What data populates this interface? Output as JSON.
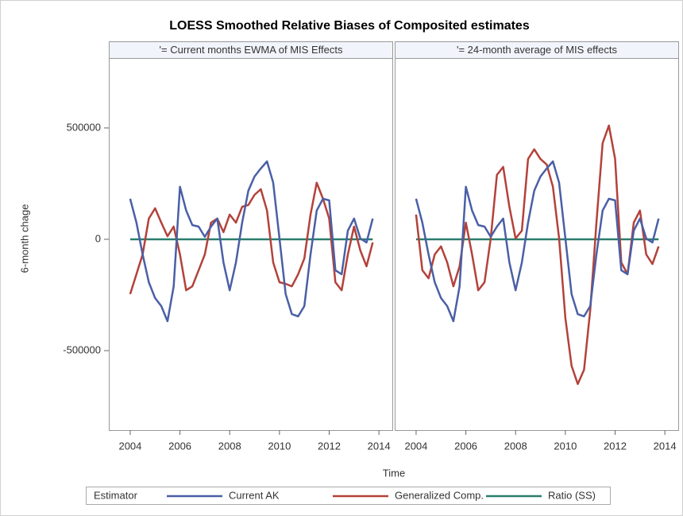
{
  "chart_data": {
    "type": "line",
    "title": "LOESS Smoothed Relative Biases of Composited estimates",
    "xlabel": "Time",
    "ylabel": "6-month chage",
    "legend_title": "Estimator",
    "x": [
      2004,
      2004.25,
      2004.5,
      2004.75,
      2005,
      2005.25,
      2005.5,
      2005.75,
      2006,
      2006.25,
      2006.5,
      2006.75,
      2007,
      2007.25,
      2007.5,
      2007.75,
      2008,
      2008.25,
      2008.5,
      2008.75,
      2009,
      2009.25,
      2009.5,
      2009.75,
      2010,
      2010.25,
      2010.5,
      2010.75,
      2011,
      2011.25,
      2011.5,
      2011.75,
      2012,
      2012.25,
      2012.5,
      2012.75,
      2013,
      2013.25,
      2013.5,
      2013.75
    ],
    "xlim": [
      2003.14,
      2014.57
    ],
    "xticks": [
      2004,
      2006,
      2008,
      2010,
      2012,
      2014
    ],
    "ylim": [
      -857000,
      814000
    ],
    "yticks": [
      -500000,
      0,
      500000
    ],
    "series": [
      {
        "name": "Current AK",
        "color": "#4a5fa6"
      },
      {
        "name": "Generalized Comp.",
        "color": "#b3423a"
      },
      {
        "name": "Ratio (SS)",
        "color": "#2a7d6e"
      }
    ],
    "panels": [
      {
        "title": "'= Current months EWMA of MIS Effects",
        "values": [
          [
            182000,
            75000,
            -68000,
            -193000,
            -264000,
            -300000,
            -368000,
            -211000,
            236000,
            129000,
            64000,
            57000,
            11000,
            57000,
            93000,
            -104000,
            -229000,
            -104000,
            75000,
            218000,
            282000,
            318000,
            350000,
            254000,
            4000,
            -246000,
            -336000,
            -346000,
            -300000,
            -68000,
            129000,
            182000,
            175000,
            -139000,
            -157000,
            39000,
            93000,
            4000,
            -14000,
            93000
          ],
          [
            -246000,
            -157000,
            -68000,
            93000,
            139000,
            75000,
            14000,
            57000,
            -68000,
            -229000,
            -211000,
            -139000,
            -68000,
            75000,
            93000,
            32000,
            111000,
            75000,
            146000,
            154000,
            200000,
            225000,
            129000,
            -104000,
            -193000,
            -200000,
            -211000,
            -157000,
            -86000,
            111000,
            254000,
            182000,
            93000,
            -193000,
            -229000,
            -68000,
            57000,
            -50000,
            -121000,
            -14000
          ],
          [
            0,
            0,
            0,
            0,
            0,
            0,
            0,
            0,
            0,
            0,
            0,
            0,
            0,
            0,
            0,
            0,
            0,
            0,
            0,
            0,
            0,
            0,
            0,
            0,
            0,
            0,
            0,
            0,
            0,
            0,
            0,
            0,
            0,
            0,
            0,
            0,
            0,
            0,
            0,
            0
          ]
        ]
      },
      {
        "title": "'= 24-month average of MIS effects",
        "values": [
          [
            182000,
            75000,
            -68000,
            -193000,
            -264000,
            -300000,
            -368000,
            -211000,
            236000,
            129000,
            64000,
            57000,
            11000,
            57000,
            93000,
            -104000,
            -229000,
            -104000,
            75000,
            218000,
            282000,
            318000,
            350000,
            254000,
            4000,
            -246000,
            -336000,
            -346000,
            -300000,
            -68000,
            129000,
            182000,
            175000,
            -139000,
            -157000,
            39000,
            93000,
            4000,
            -14000,
            93000
          ],
          [
            111000,
            -139000,
            -175000,
            -68000,
            -32000,
            -104000,
            -211000,
            -121000,
            75000,
            -68000,
            -229000,
            -193000,
            4000,
            289000,
            325000,
            146000,
            4000,
            39000,
            361000,
            404000,
            361000,
            336000,
            236000,
            4000,
            -354000,
            -568000,
            -650000,
            -586000,
            -318000,
            75000,
            432000,
            511000,
            361000,
            -104000,
            -157000,
            75000,
            129000,
            -68000,
            -111000,
            -32000
          ],
          [
            0,
            0,
            0,
            0,
            0,
            0,
            0,
            0,
            0,
            0,
            0,
            0,
            0,
            0,
            0,
            0,
            0,
            0,
            0,
            0,
            0,
            0,
            0,
            0,
            0,
            0,
            0,
            0,
            0,
            0,
            0,
            0,
            0,
            0,
            0,
            0,
            0,
            0,
            0,
            0
          ]
        ]
      }
    ]
  }
}
